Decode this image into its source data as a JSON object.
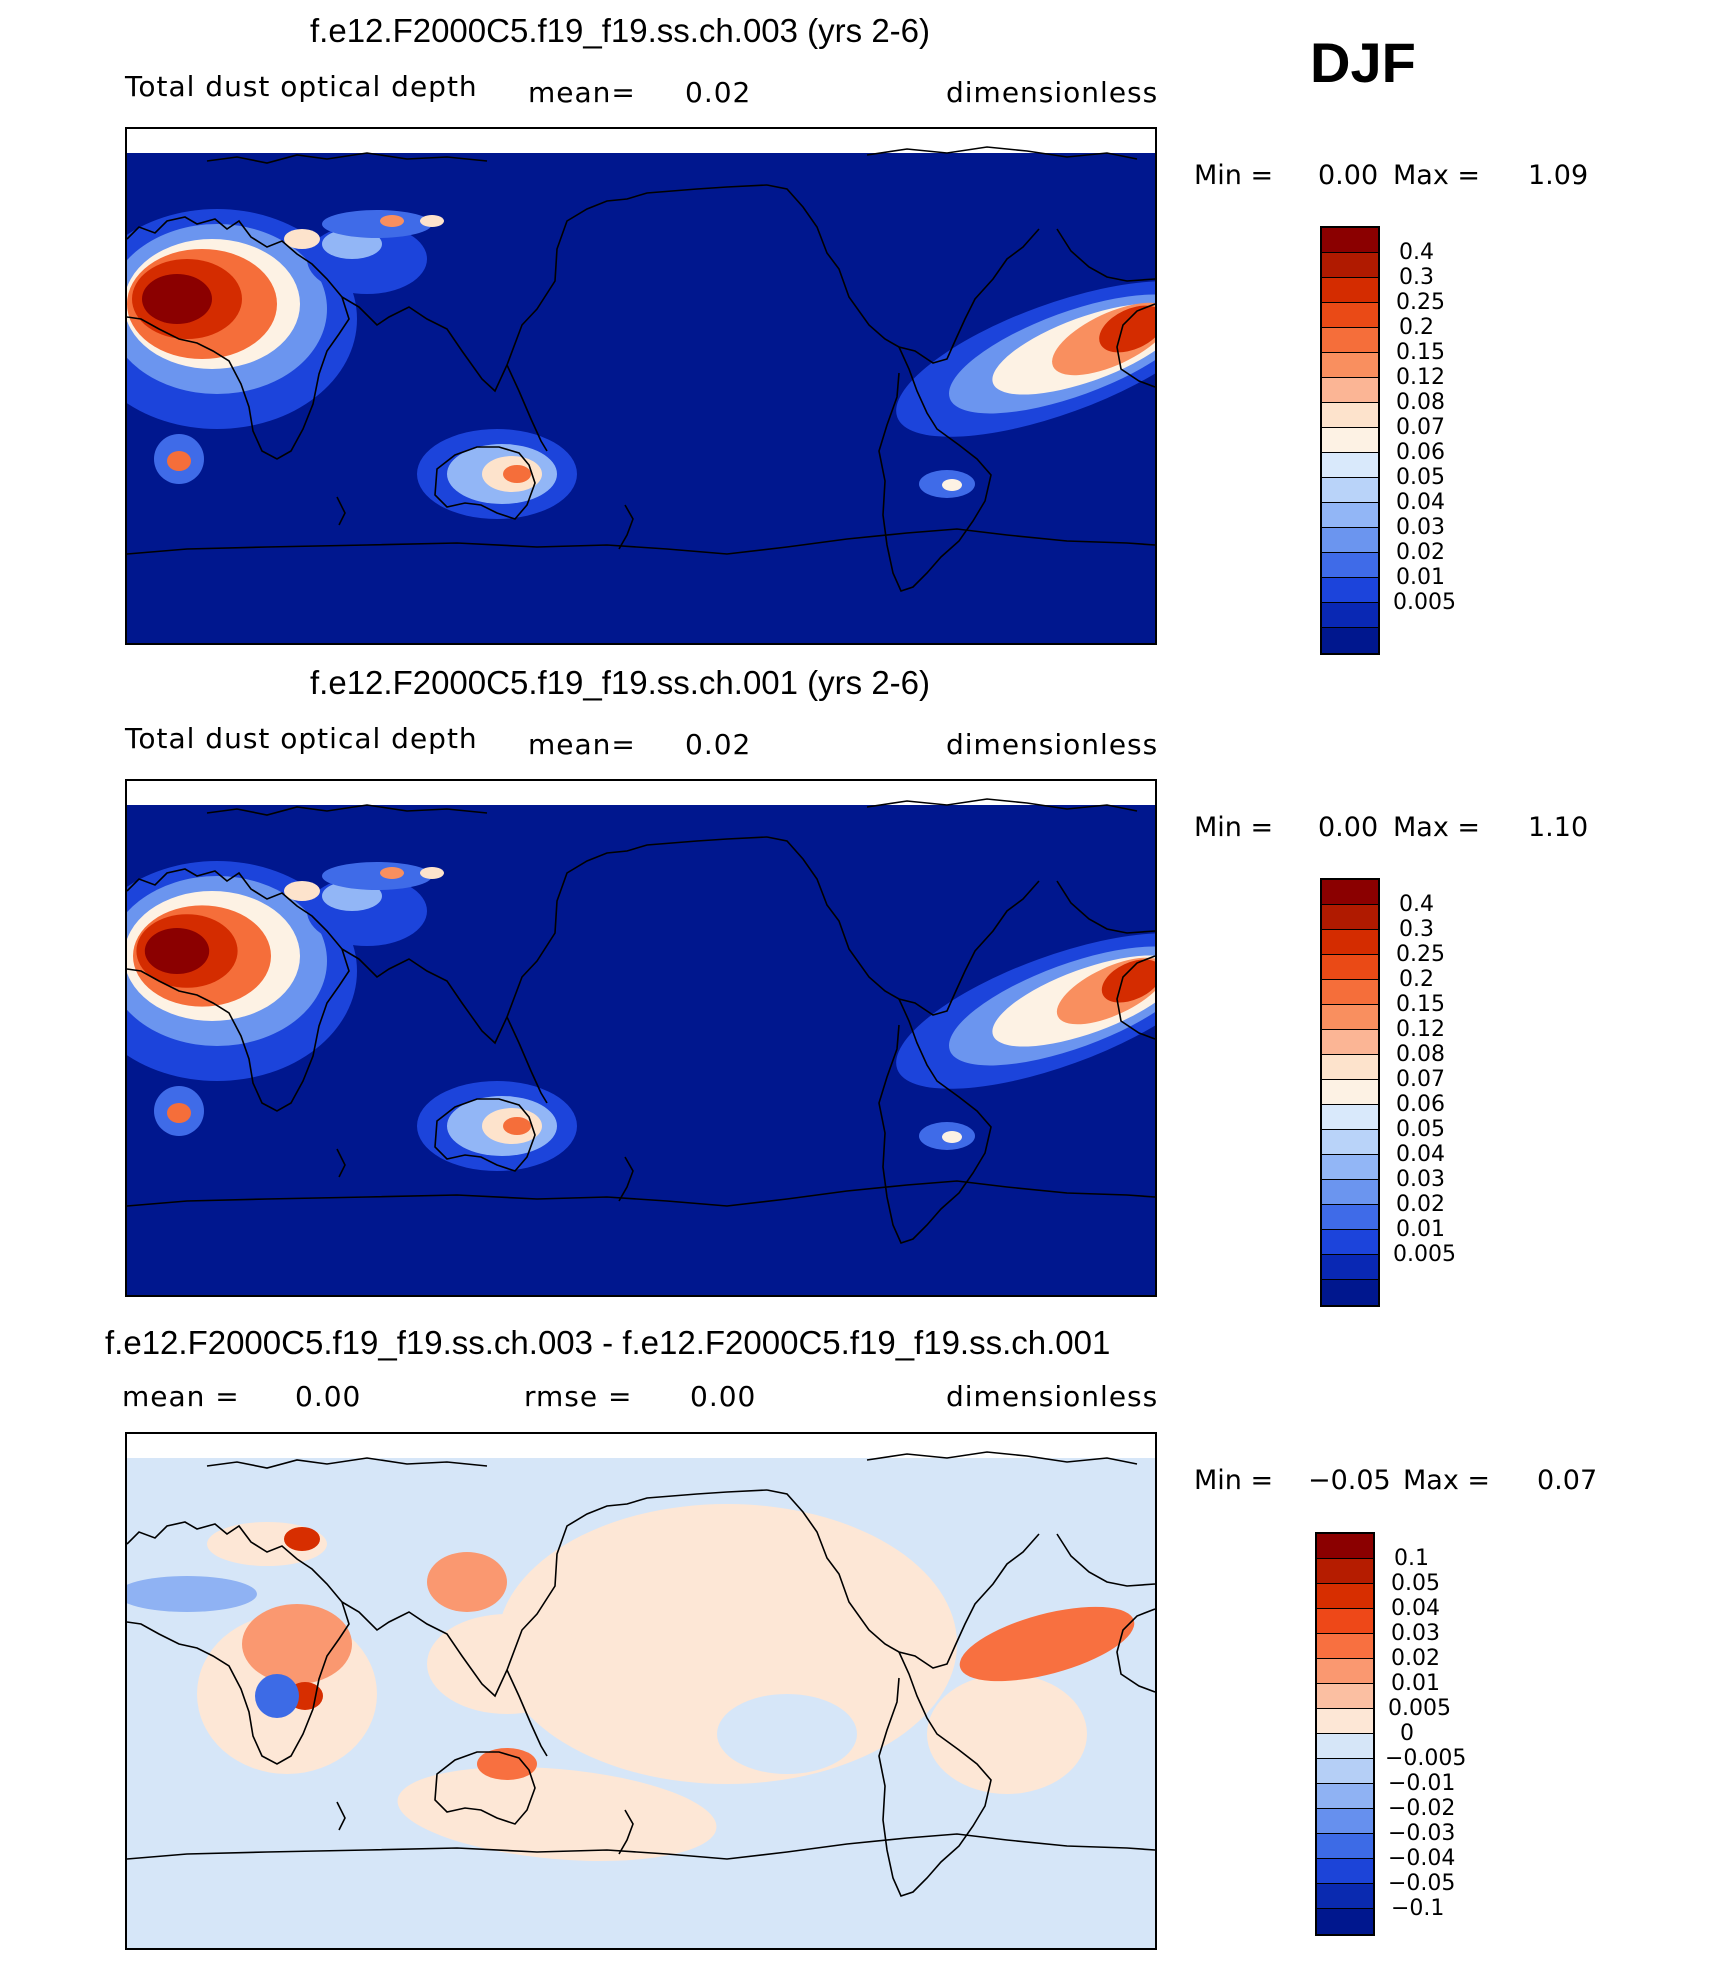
{
  "season": "DJF",
  "panels": [
    {
      "title": "f.e12.F2000C5.f19_f19.ss.ch.003 (yrs 2-6)",
      "variable": "Total dust optical depth",
      "stat1_label": "mean=",
      "stat1_value": "0.02",
      "units": "dimensionless",
      "min_label": "Min =",
      "min_value": "0.00",
      "max_label": "Max =",
      "max_value": "1.09",
      "levels": [
        "0.4",
        "0.3",
        "0.25",
        "0.2",
        "0.15",
        "0.12",
        "0.08",
        "0.07",
        "0.06",
        "0.05",
        "0.04",
        "0.03",
        "0.02",
        "0.01",
        "0.005"
      ],
      "colors": [
        "#8b0000",
        "#b01a00",
        "#d42c00",
        "#ea4a16",
        "#f56e3a",
        "#f98f5f",
        "#fbb595",
        "#fde3cc",
        "#fdf2e4",
        "#d9e9fb",
        "#b9d3f9",
        "#92b6f6",
        "#6b95ef",
        "#3f6be8",
        "#1c44db",
        "#0928b4",
        "#00178e"
      ]
    },
    {
      "title": "f.e12.F2000C5.f19_f19.ss.ch.001 (yrs 2-6)",
      "variable": "Total dust optical depth",
      "stat1_label": "mean=",
      "stat1_value": "0.02",
      "units": "dimensionless",
      "min_label": "Min =",
      "min_value": "0.00",
      "max_label": "Max =",
      "max_value": "1.10",
      "levels": [
        "0.4",
        "0.3",
        "0.25",
        "0.2",
        "0.15",
        "0.12",
        "0.08",
        "0.07",
        "0.06",
        "0.05",
        "0.04",
        "0.03",
        "0.02",
        "0.01",
        "0.005"
      ],
      "colors": [
        "#8b0000",
        "#b01a00",
        "#d42c00",
        "#ea4a16",
        "#f56e3a",
        "#f98f5f",
        "#fbb595",
        "#fde3cc",
        "#fdf2e4",
        "#d9e9fb",
        "#b9d3f9",
        "#92b6f6",
        "#6b95ef",
        "#3f6be8",
        "#1c44db",
        "#0928b4",
        "#00178e"
      ]
    },
    {
      "title": "f.e12.F2000C5.f19_f19.ss.ch.003 - f.e12.F2000C5.f19_f19.ss.ch.001",
      "stat1_label": "mean =",
      "stat1_value": "0.00",
      "stat2_label": "rmse =",
      "stat2_value": "0.00",
      "units": "dimensionless",
      "min_label": "Min =",
      "min_value": "−0.05",
      "max_label": "Max =",
      "max_value": "0.07",
      "levels": [
        "0.1",
        "0.05",
        "0.04",
        "0.03",
        "0.02",
        "0.01",
        "0.005",
        "0",
        "−0.005",
        "−0.01",
        "−0.02",
        "−0.03",
        "−0.04",
        "−0.05",
        "−0.1"
      ],
      "colors": [
        "#8b0000",
        "#b51c00",
        "#d72e00",
        "#ee4818",
        "#f87040",
        "#fa9870",
        "#fbbfa2",
        "#fde7d6",
        "#d6e6f8",
        "#b5cff6",
        "#8fb2f3",
        "#6690ee",
        "#3d6be6",
        "#1c44d8",
        "#0a2ab0",
        "#00178e"
      ]
    }
  ]
}
